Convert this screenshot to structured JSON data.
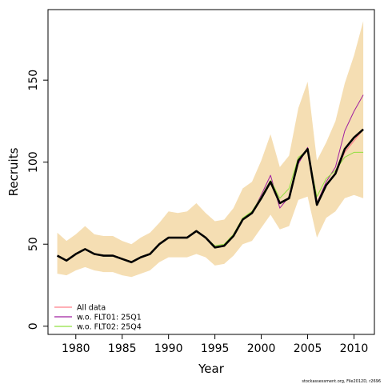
{
  "chart_data": {
    "type": "line",
    "title": "",
    "xlabel": "Year",
    "ylabel": "Recruits",
    "xlim": [
      1977.0,
      2012.2
    ],
    "ylim": [
      -5,
      193
    ],
    "x_ticks": [
      1980,
      1985,
      1990,
      1995,
      2000,
      2005,
      2010
    ],
    "x_tick_labels": [
      "1980",
      "1985",
      "1990",
      "1995",
      "2000",
      "2005",
      "2010"
    ],
    "y_ticks": [
      0,
      50,
      100,
      150
    ],
    "y_tick_labels": [
      "0",
      "50",
      "100",
      "150"
    ],
    "grid": false,
    "legend_position": "bottom-left",
    "x": [
      1978,
      1979,
      1980,
      1981,
      1982,
      1983,
      1984,
      1985,
      1986,
      1987,
      1988,
      1989,
      1990,
      1991,
      1992,
      1993,
      1994,
      1995,
      1996,
      1997,
      1998,
      1999,
      2000,
      2001,
      2002,
      2003,
      2004,
      2005,
      2006,
      2007,
      2008,
      2009,
      2010,
      2011
    ],
    "band": {
      "color": "#f5deb3",
      "lower": [
        32,
        31,
        34,
        36,
        34,
        33,
        33,
        31,
        30,
        32,
        34,
        39,
        42,
        42,
        42,
        44,
        42,
        37,
        38,
        43,
        50,
        52,
        60,
        68,
        59,
        61,
        77,
        79,
        54,
        66,
        70,
        78,
        80,
        78
      ],
      "upper": [
        57,
        52,
        56,
        61,
        56,
        55,
        55,
        52,
        50,
        54,
        57,
        63,
        70,
        69,
        70,
        75,
        69,
        64,
        65,
        72,
        84,
        88,
        101,
        117,
        97,
        104,
        133,
        149,
        101,
        112,
        125,
        148,
        165,
        186
      ]
    },
    "series": [
      {
        "name": "All data",
        "color": "#ff7f8a",
        "values": [
          43,
          40,
          44,
          47,
          44,
          43,
          43,
          41,
          39,
          42,
          44,
          50,
          54,
          54,
          54,
          58,
          54,
          48,
          49,
          55,
          65,
          69,
          78,
          88,
          75,
          78,
          100,
          108,
          74,
          86,
          93,
          106,
          113,
          120
        ],
        "width": 1.2
      },
      {
        "name": "w.o. FLT01: 25Q1",
        "color": "#a020a0",
        "values": [
          43,
          40,
          44,
          47,
          44,
          43,
          43,
          41,
          39,
          42,
          44,
          50,
          54,
          54,
          54,
          58,
          54,
          48,
          49,
          55,
          65,
          69,
          80,
          92,
          72,
          79,
          99,
          109,
          75,
          88,
          97,
          119,
          131,
          141
        ],
        "width": 1
      },
      {
        "name": "w.o. FLT02: 25Q4",
        "color": "#90e040",
        "values": [
          43,
          40,
          44,
          47,
          44,
          43,
          43,
          41,
          39,
          42,
          44,
          50,
          54,
          54,
          54,
          58,
          54,
          49,
          50,
          56,
          66,
          70,
          79,
          89,
          78,
          84,
          103,
          107,
          79,
          90,
          95,
          103,
          106,
          106
        ],
        "width": 1
      }
    ],
    "estimate": {
      "color": "#000000",
      "values": [
        43,
        40,
        44,
        47,
        44,
        43,
        43,
        41,
        39,
        42,
        44,
        50,
        54,
        54,
        54,
        58,
        54,
        48,
        49,
        55,
        65,
        69,
        78,
        88,
        75,
        78,
        101,
        108,
        74,
        86,
        93,
        108,
        115,
        120
      ]
    }
  },
  "footer": "stockassessment.org, File2012D, r2696"
}
